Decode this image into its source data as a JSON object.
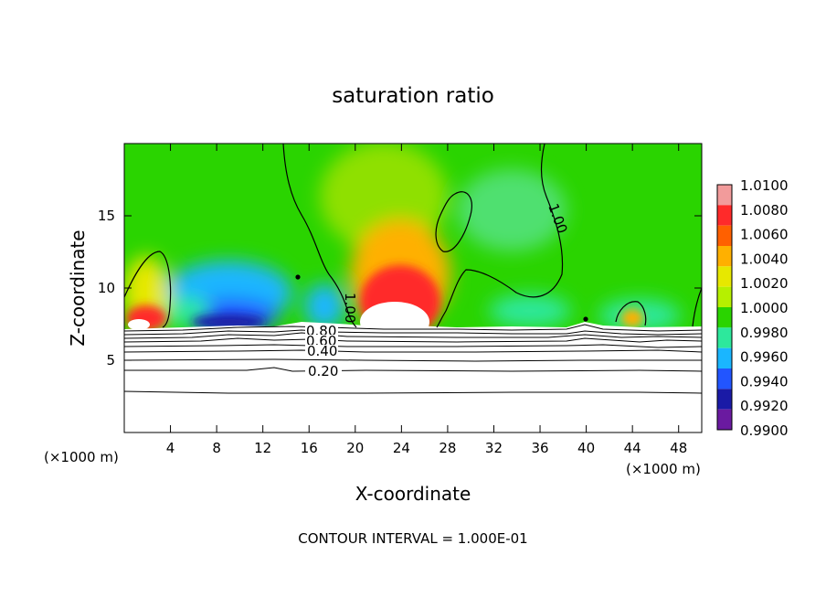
{
  "chart_data": {
    "type": "heatmap",
    "title": "saturation ratio",
    "xlabel": "X-coordinate",
    "ylabel": "Z-coordinate",
    "x_unit": "(×1000 m)",
    "xlim": [
      0,
      50
    ],
    "ylim": [
      0,
      20
    ],
    "x_ticks": [
      4,
      8,
      12,
      16,
      20,
      24,
      28,
      32,
      36,
      40,
      44,
      48
    ],
    "y_ticks": [
      5,
      10,
      15
    ],
    "footer": "CONTOUR INTERVAL = 1.000E-01",
    "colorbar": {
      "levels": [
        "1.0100",
        "1.0080",
        "1.0060",
        "1.0040",
        "1.0020",
        "1.0000",
        "0.9980",
        "0.9960",
        "0.9940",
        "0.9920",
        "0.9900"
      ],
      "colors": [
        "#f29b9b",
        "#ff2a2a",
        "#ff6000",
        "#ffb000",
        "#e7e800",
        "#b6f000",
        "#2ad400",
        "#2de89c",
        "#1ab6ff",
        "#2255ff",
        "#1a1aa6",
        "#6a1aa0"
      ]
    },
    "contour_labels": [
      "0.80",
      "0.60",
      "0.40",
      "0.20",
      "1.00",
      "1.00"
    ],
    "contour_levels": [
      0.2,
      0.4,
      0.6,
      0.8,
      1.0
    ]
  }
}
